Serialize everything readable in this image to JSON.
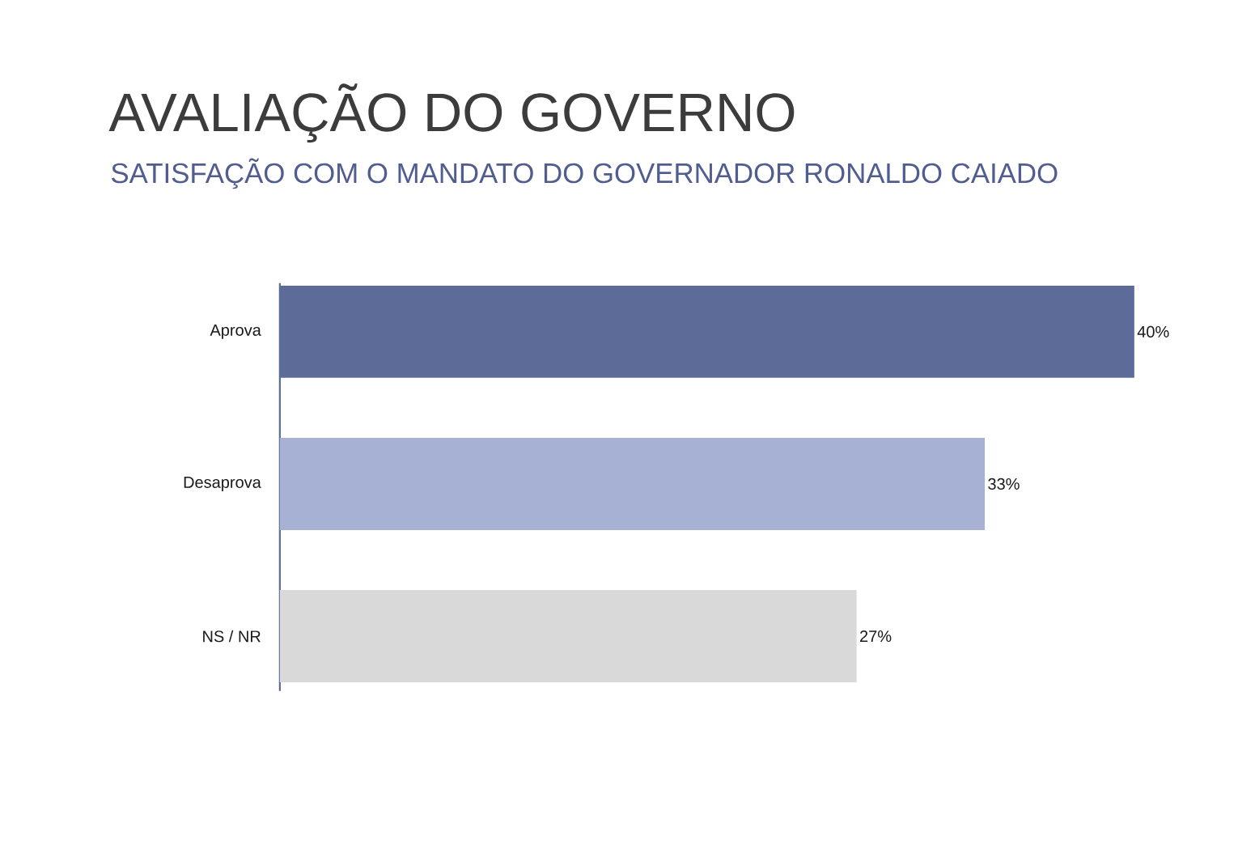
{
  "chart_data": {
    "type": "bar",
    "orientation": "horizontal",
    "title": "AVALIAÇÃO DO GOVERNO",
    "subtitle": "SATISFAÇÃO COM O MANDATO DO GOVERNADOR RONALDO CAIADO",
    "categories": [
      "Aprova",
      "Desaprova",
      "NS / NR"
    ],
    "values": [
      40,
      33,
      27
    ],
    "colors": [
      "#5d6b98",
      "#a7b1d3",
      "#d9d9d9"
    ],
    "value_labels": [
      "40%",
      "33%",
      "27%"
    ],
    "xlim": [
      0,
      40
    ],
    "tick_labels": "y"
  }
}
